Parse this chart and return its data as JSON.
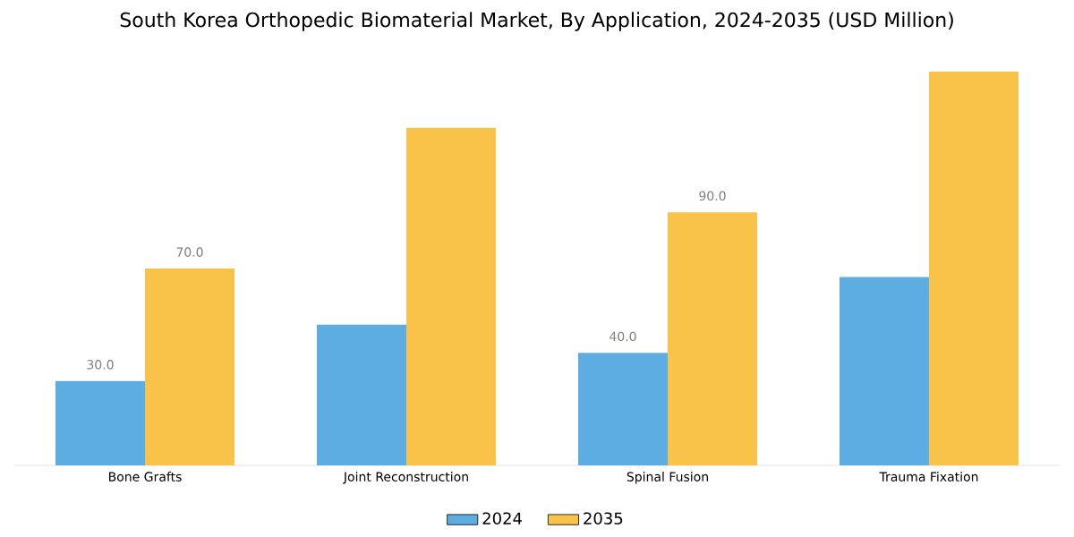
{
  "chart_data": {
    "type": "bar",
    "title": "South Korea Orthopedic Biomaterial Market, By Application, 2024-2035 (USD Million)",
    "categories": [
      "Bone Grafts",
      "Joint Reconstruction",
      "Spinal Fusion",
      "Trauma Fixation"
    ],
    "series": [
      {
        "name": "2024",
        "color": "#5dade2",
        "values": [
          30,
          50,
          40,
          67
        ],
        "value_labels": [
          "30.0",
          null,
          "40.0",
          null
        ]
      },
      {
        "name": "2035",
        "color": "#f9c34a",
        "values": [
          70,
          120,
          90,
          140
        ],
        "value_labels": [
          "70.0",
          null,
          "90.0",
          null
        ]
      }
    ],
    "legend": "bottom"
  }
}
